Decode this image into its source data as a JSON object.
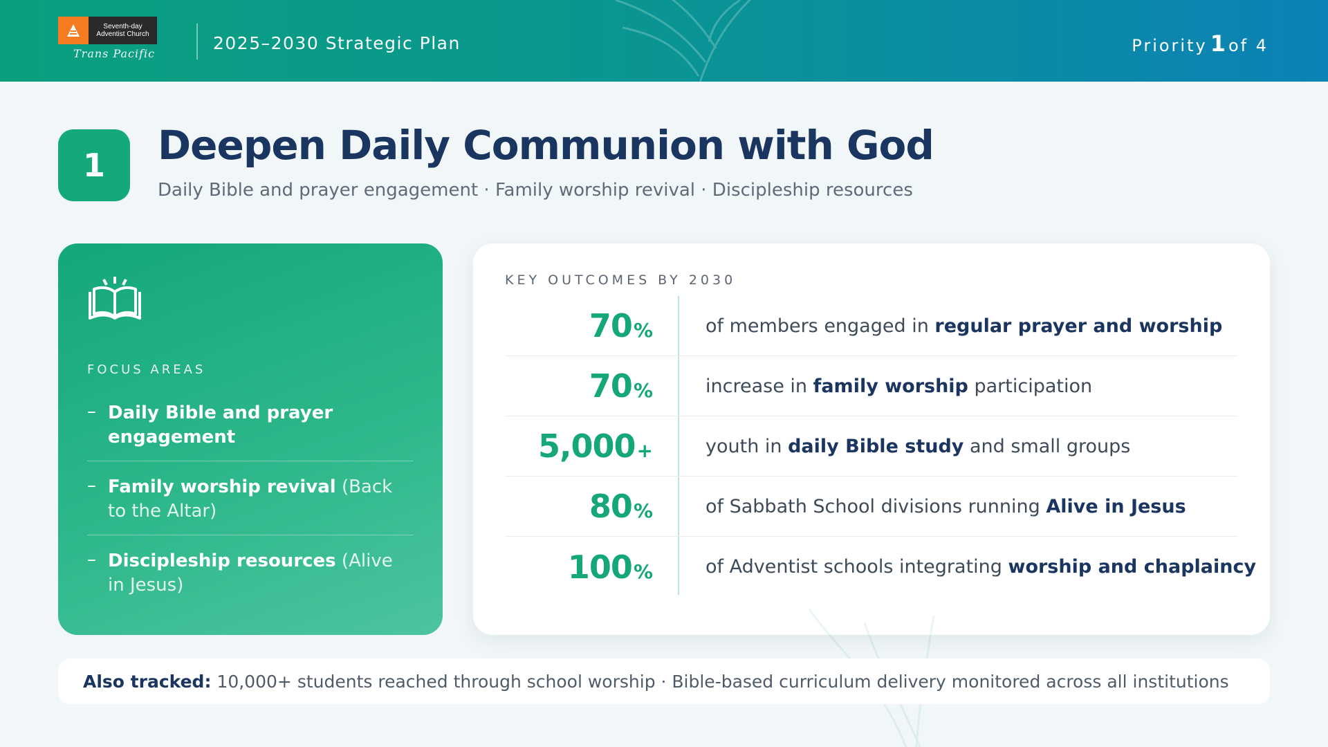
{
  "header": {
    "logo_line1": "Seventh-day",
    "logo_line2": "Adventist Church",
    "logo_script": "Trans Pacific",
    "plan_title": "2025–2030 Strategic Plan",
    "priority_prefix": "Priority",
    "priority_number": "1",
    "priority_suffix": "of 4"
  },
  "title": {
    "badge": "1",
    "heading": "Deepen Daily Communion with God",
    "subtitle": "Daily Bible and prayer engagement · Family worship revival · Discipleship resources"
  },
  "focus": {
    "icon": "open-book-icon",
    "label": "FOCUS AREAS",
    "items": [
      {
        "strong": "Daily Bible and prayer engagement",
        "light": ""
      },
      {
        "strong": "Family worship revival",
        "light": " (Back to the Altar)"
      },
      {
        "strong": "Discipleship resources",
        "light": " (Alive in Jesus)"
      }
    ]
  },
  "outcomes": {
    "label": "KEY OUTCOMES BY 2030",
    "rows": [
      {
        "value": "70",
        "unit": "%",
        "pre": "of members engaged in ",
        "hl": "regular prayer and worship",
        "post": ""
      },
      {
        "value": "70",
        "unit": "%",
        "pre": "increase in ",
        "hl": "family worship",
        "post": " participation"
      },
      {
        "value": "5,000",
        "unit": "+",
        "pre": "youth in ",
        "hl": "daily Bible study",
        "post": " and small groups"
      },
      {
        "value": "80",
        "unit": "%",
        "pre": "of Sabbath School divisions running ",
        "hl": "Alive in Jesus",
        "post": ""
      },
      {
        "value": "100",
        "unit": "%",
        "pre": "of Adventist schools integrating ",
        "hl": "worship and chaplaincy",
        "post": ""
      }
    ]
  },
  "tracked": {
    "label": "Also tracked:",
    "text": "10,000+ students reached through school worship · Bible-based curriculum delivery monitored across all institutions"
  },
  "colors": {
    "accent_green": "#13a97b",
    "navy": "#1a3560",
    "header_start": "#0aa07e",
    "header_end": "#0c82b6"
  }
}
